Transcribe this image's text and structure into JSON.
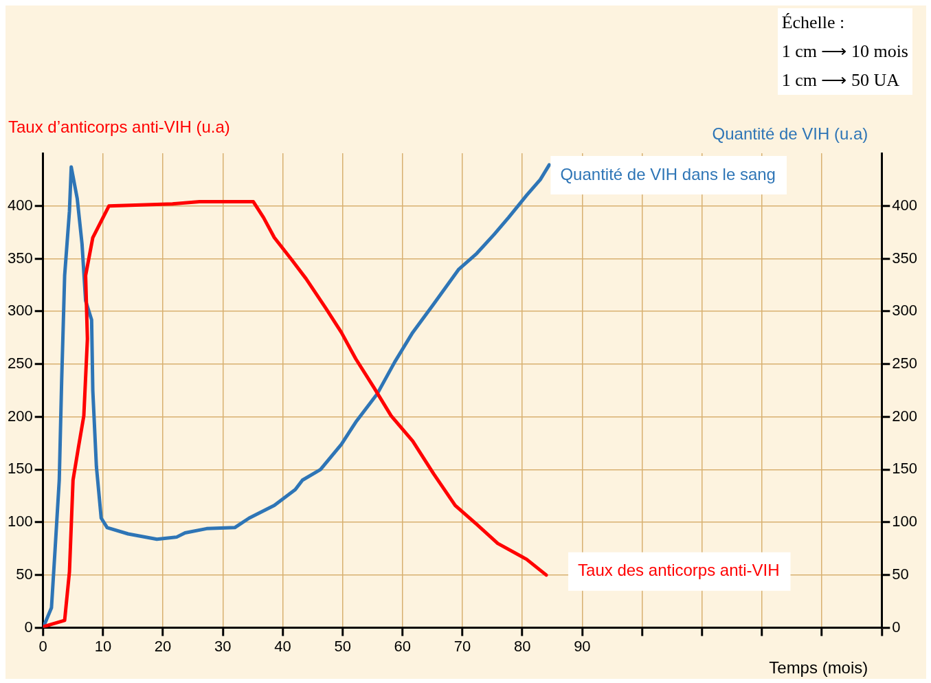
{
  "chart_data": {
    "type": "line",
    "xlabel": "Temps (mois)",
    "ylabel": "Taux d’anticorps anti-VIH (u.a)",
    "y2label": "Quantité de VIH (u.a)",
    "annotations": [
      "Échelle :",
      "1 cm ⟶ 10 mois",
      "1 cm ⟶ 50 UA"
    ],
    "xlim": [
      0,
      140
    ],
    "xticks": [
      0,
      10,
      20,
      30,
      40,
      50,
      60,
      70,
      80,
      90,
      {
        "value": 100,
        "label": null
      },
      {
        "value": 110,
        "label": null
      },
      {
        "value": 120,
        "label": null
      },
      {
        "value": 130,
        "label": null
      },
      {
        "value": 140,
        "label": null
      }
    ],
    "ylim": [
      0,
      450
    ],
    "yticks": [
      0,
      50,
      100,
      150,
      200,
      250,
      300,
      350,
      400
    ],
    "y2lim": [
      0,
      450
    ],
    "y2ticks": [
      0,
      50,
      100,
      150,
      200,
      250,
      300,
      350,
      400
    ],
    "grid": true,
    "legend": false,
    "marker": "none",
    "line_style": "solid",
    "series": [
      {
        "name": "Taux des anticorps anti-VIH",
        "color": "#ff0000",
        "x": [
          0,
          3.6,
          4.4,
          5,
          5.9,
          6.8,
          7.4,
          7.1,
          8.3,
          11,
          21.6,
          26.1,
          35.1,
          36.8,
          38.6,
          41.5,
          43.9,
          47.2,
          49.8,
          52.2,
          55.2,
          58.1,
          61.7,
          65.2,
          68.8,
          72.4,
          75.9,
          80.7,
          84
        ],
        "values": [
          1,
          7,
          53,
          140,
          171,
          201,
          274,
          334,
          370,
          400,
          402,
          404,
          404,
          389,
          370,
          349,
          331,
          303,
          280,
          255,
          228,
          201,
          177,
          146,
          116,
          98,
          80,
          65,
          50
        ]
      },
      {
        "name": "Quantité de VIH dans le sang",
        "color": "#2e75b6",
        "axis": "y2",
        "x": [
          0,
          1.4,
          2,
          2.7,
          3.1,
          3.6,
          4.4,
          4.7,
          5.7,
          6.5,
          7.1,
          8.1,
          8.3,
          8.9,
          9.7,
          10.7,
          14.2,
          19,
          22.3,
          23.7,
          27.3,
          32,
          34.4,
          38.6,
          42.1,
          43.3,
          46.3,
          49.8,
          52.2,
          55.8,
          58.7,
          61.7,
          65.2,
          69.4,
          72.4,
          75.3,
          77.7,
          80.7,
          83,
          84.5
        ],
        "values": [
          0,
          19,
          74,
          140,
          234,
          334,
          395,
          437,
          407,
          364,
          310,
          292,
          225,
          153,
          104,
          95,
          89,
          84,
          86,
          90,
          94,
          95,
          104,
          116,
          131,
          140,
          150,
          174,
          195,
          222,
          252,
          280,
          307,
          340,
          355,
          373,
          389,
          410,
          425,
          439
        ]
      }
    ]
  }
}
